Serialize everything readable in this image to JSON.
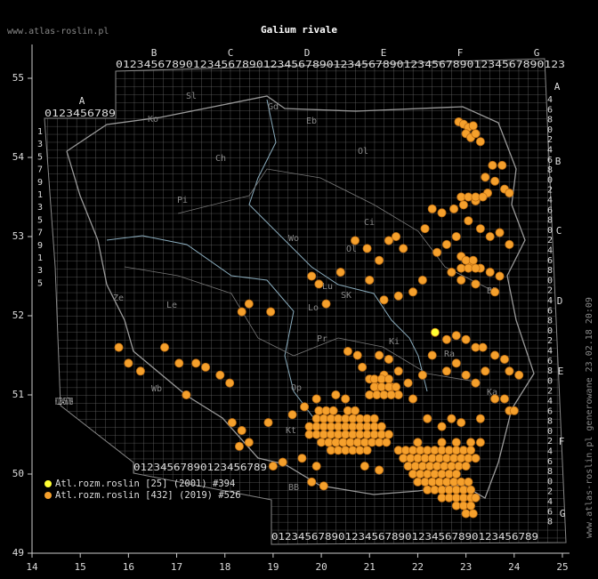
{
  "header": {
    "site": "www.atlas-roslin.pl",
    "title": "Galium rivale"
  },
  "side_note": "www.atlas-roslin.pl generowane 23.02.18 20:09",
  "axes": {
    "lon_ticks": [
      14,
      15,
      16,
      17,
      18,
      19,
      20,
      21,
      22,
      23,
      24,
      25
    ],
    "lat_ticks": [
      49,
      50,
      51,
      52,
      53,
      54,
      55
    ]
  },
  "grid_letters": {
    "top": [
      "B",
      "C",
      "D",
      "E",
      "F",
      "G"
    ],
    "left": "A",
    "right": [
      "A",
      "B",
      "C",
      "D",
      "E",
      "F",
      "G"
    ]
  },
  "digit_rows": {
    "top": "0123456789012345678901234567890123456789012345678901234567890123",
    "upper_left": "0123456789",
    "lower_left": "0123456789",
    "bottom_left": "01234567890123456789",
    "bottom": "0123456789012345678901234567890123456789",
    "left_column": "1357913579135",
    "right_column": "4680246802468024680246802468024680246802468"
  },
  "regions": [
    "Sl",
    "Gd",
    "Eb",
    "Ol",
    "Ko",
    "Ch",
    "Pi",
    "Ci",
    "Wo",
    "Ol",
    "Lo",
    "SK",
    "BP",
    "Pr",
    "Ki",
    "Ze",
    "Le",
    "Lu",
    "Wb",
    "Op",
    "Kt",
    "BB",
    "Ra",
    "Ka"
  ],
  "legend": [
    {
      "label": "Atl.rozm.roslin [25] (2001) #394",
      "color": "#ffff33",
      "points": [
        [
          22.36,
          51.79
        ]
      ]
    },
    {
      "label": "Atl.rozm.roslin [432] (2019) #526",
      "color": "#f5a02c",
      "points": [
        [
          22.85,
          54.45
        ],
        [
          22.95,
          54.42
        ],
        [
          23.05,
          54.38
        ],
        [
          23.15,
          54.4
        ],
        [
          23.0,
          54.3
        ],
        [
          23.1,
          54.25
        ],
        [
          23.3,
          54.2
        ],
        [
          23.2,
          54.3
        ],
        [
          23.55,
          53.9
        ],
        [
          23.75,
          53.9
        ],
        [
          23.4,
          53.75
        ],
        [
          23.6,
          53.7
        ],
        [
          23.8,
          53.6
        ],
        [
          23.9,
          53.55
        ],
        [
          23.45,
          53.55
        ],
        [
          23.2,
          53.45
        ],
        [
          22.95,
          53.4
        ],
        [
          22.75,
          53.35
        ],
        [
          22.5,
          53.3
        ],
        [
          22.3,
          53.35
        ],
        [
          22.15,
          53.1
        ],
        [
          23.05,
          53.2
        ],
        [
          23.3,
          53.1
        ],
        [
          23.5,
          53.0
        ],
        [
          23.7,
          53.05
        ],
        [
          23.9,
          52.9
        ],
        [
          22.8,
          53.0
        ],
        [
          22.6,
          52.9
        ],
        [
          22.4,
          52.8
        ],
        [
          22.9,
          52.75
        ],
        [
          23.1,
          52.65
        ],
        [
          23.3,
          52.6
        ],
        [
          23.5,
          52.55
        ],
        [
          23.7,
          52.5
        ],
        [
          22.7,
          52.55
        ],
        [
          22.9,
          52.45
        ],
        [
          23.2,
          52.4
        ],
        [
          23.6,
          52.3
        ],
        [
          22.9,
          53.5
        ],
        [
          23.05,
          53.5
        ],
        [
          23.2,
          53.5
        ],
        [
          23.35,
          53.5
        ],
        [
          22.9,
          52.6
        ],
        [
          23.05,
          52.6
        ],
        [
          23.2,
          52.6
        ],
        [
          23.0,
          52.7
        ],
        [
          23.15,
          52.7
        ],
        [
          21.4,
          52.95
        ],
        [
          21.7,
          52.85
        ],
        [
          21.55,
          53.0
        ],
        [
          20.7,
          52.95
        ],
        [
          20.95,
          52.85
        ],
        [
          21.2,
          52.7
        ],
        [
          21.0,
          52.45
        ],
        [
          21.3,
          52.2
        ],
        [
          21.6,
          52.25
        ],
        [
          21.9,
          52.3
        ],
        [
          22.1,
          52.45
        ],
        [
          19.8,
          52.5
        ],
        [
          19.95,
          52.4
        ],
        [
          18.5,
          52.15
        ],
        [
          18.35,
          52.05
        ],
        [
          18.95,
          52.05
        ],
        [
          20.1,
          52.15
        ],
        [
          20.4,
          52.55
        ],
        [
          16.75,
          51.6
        ],
        [
          17.05,
          51.4
        ],
        [
          17.4,
          51.4
        ],
        [
          17.6,
          51.35
        ],
        [
          17.9,
          51.25
        ],
        [
          18.1,
          51.15
        ],
        [
          17.2,
          51.0
        ],
        [
          15.8,
          51.6
        ],
        [
          16.0,
          51.4
        ],
        [
          16.25,
          51.3
        ],
        [
          18.15,
          50.65
        ],
        [
          18.35,
          50.55
        ],
        [
          18.3,
          50.35
        ],
        [
          18.5,
          50.4
        ],
        [
          19.0,
          50.1
        ],
        [
          19.2,
          50.15
        ],
        [
          18.9,
          50.65
        ],
        [
          19.4,
          50.75
        ],
        [
          19.65,
          50.85
        ],
        [
          19.9,
          50.95
        ],
        [
          20.3,
          51.0
        ],
        [
          20.5,
          50.95
        ],
        [
          20.55,
          51.55
        ],
        [
          20.75,
          51.5
        ],
        [
          20.85,
          51.35
        ],
        [
          21.0,
          51.2
        ],
        [
          21.15,
          51.1
        ],
        [
          21.3,
          51.25
        ],
        [
          21.45,
          51.1
        ],
        [
          21.6,
          51.3
        ],
        [
          21.4,
          51.45
        ],
        [
          21.2,
          51.5
        ],
        [
          21.6,
          51.0
        ],
        [
          21.8,
          51.15
        ],
        [
          21.9,
          50.95
        ],
        [
          22.1,
          51.25
        ],
        [
          22.3,
          51.5
        ],
        [
          22.6,
          51.7
        ],
        [
          22.8,
          51.75
        ],
        [
          23.0,
          51.7
        ],
        [
          23.2,
          51.6
        ],
        [
          23.35,
          51.6
        ],
        [
          23.6,
          51.5
        ],
        [
          23.8,
          51.45
        ],
        [
          23.9,
          51.3
        ],
        [
          24.1,
          51.25
        ],
        [
          23.4,
          51.3
        ],
        [
          23.2,
          51.15
        ],
        [
          23.0,
          51.25
        ],
        [
          22.8,
          51.4
        ],
        [
          22.6,
          51.3
        ],
        [
          23.6,
          50.95
        ],
        [
          23.8,
          50.95
        ],
        [
          23.9,
          50.8
        ],
        [
          24.0,
          50.8
        ],
        [
          23.3,
          50.7
        ],
        [
          22.9,
          50.65
        ],
        [
          22.7,
          50.7
        ],
        [
          22.5,
          50.6
        ],
        [
          22.2,
          50.7
        ],
        [
          20.9,
          50.1
        ],
        [
          21.2,
          50.05
        ],
        [
          19.8,
          49.9
        ],
        [
          20.05,
          49.85
        ],
        [
          19.6,
          50.2
        ],
        [
          19.9,
          50.1
        ],
        [
          21.1,
          51.2
        ],
        [
          21.25,
          51.2
        ],
        [
          21.4,
          51.2
        ],
        [
          21.1,
          51.1
        ],
        [
          21.25,
          51.1
        ],
        [
          21.4,
          51.1
        ],
        [
          21.55,
          51.1
        ],
        [
          21.0,
          51.0
        ],
        [
          21.15,
          51.0
        ],
        [
          21.3,
          51.0
        ],
        [
          21.45,
          51.0
        ],
        [
          19.95,
          50.8
        ],
        [
          20.1,
          50.8
        ],
        [
          20.25,
          50.8
        ],
        [
          20.55,
          50.8
        ],
        [
          20.7,
          50.8
        ],
        [
          19.9,
          50.7
        ],
        [
          20.05,
          50.7
        ],
        [
          20.2,
          50.7
        ],
        [
          20.35,
          50.7
        ],
        [
          20.5,
          50.7
        ],
        [
          20.65,
          50.7
        ],
        [
          20.8,
          50.7
        ],
        [
          20.95,
          50.7
        ],
        [
          21.1,
          50.7
        ],
        [
          19.75,
          50.6
        ],
        [
          19.9,
          50.6
        ],
        [
          20.05,
          50.6
        ],
        [
          20.2,
          50.6
        ],
        [
          20.35,
          50.6
        ],
        [
          20.5,
          50.6
        ],
        [
          20.65,
          50.6
        ],
        [
          20.8,
          50.6
        ],
        [
          20.95,
          50.6
        ],
        [
          21.1,
          50.6
        ],
        [
          21.25,
          50.6
        ],
        [
          19.75,
          50.5
        ],
        [
          19.9,
          50.5
        ],
        [
          20.05,
          50.5
        ],
        [
          20.2,
          50.5
        ],
        [
          20.35,
          50.5
        ],
        [
          20.5,
          50.5
        ],
        [
          20.65,
          50.5
        ],
        [
          20.8,
          50.5
        ],
        [
          20.95,
          50.5
        ],
        [
          21.1,
          50.5
        ],
        [
          21.25,
          50.5
        ],
        [
          21.4,
          50.5
        ],
        [
          20.0,
          50.4
        ],
        [
          20.15,
          50.4
        ],
        [
          20.3,
          50.4
        ],
        [
          20.45,
          50.4
        ],
        [
          20.6,
          50.4
        ],
        [
          20.75,
          50.4
        ],
        [
          20.9,
          50.4
        ],
        [
          21.05,
          50.4
        ],
        [
          21.2,
          50.4
        ],
        [
          21.35,
          50.4
        ],
        [
          20.2,
          50.3
        ],
        [
          20.35,
          50.3
        ],
        [
          20.5,
          50.3
        ],
        [
          20.65,
          50.3
        ],
        [
          20.8,
          50.3
        ],
        [
          20.95,
          50.3
        ],
        [
          22.0,
          50.4
        ],
        [
          22.5,
          50.4
        ],
        [
          22.8,
          50.4
        ],
        [
          23.1,
          50.4
        ],
        [
          23.3,
          50.4
        ],
        [
          21.6,
          50.3
        ],
        [
          21.75,
          50.3
        ],
        [
          21.9,
          50.3
        ],
        [
          22.05,
          50.3
        ],
        [
          22.2,
          50.3
        ],
        [
          22.35,
          50.3
        ],
        [
          22.5,
          50.3
        ],
        [
          22.65,
          50.3
        ],
        [
          22.8,
          50.3
        ],
        [
          22.95,
          50.3
        ],
        [
          23.1,
          50.3
        ],
        [
          21.7,
          50.2
        ],
        [
          21.85,
          50.2
        ],
        [
          22.0,
          50.2
        ],
        [
          22.15,
          50.2
        ],
        [
          22.3,
          50.2
        ],
        [
          22.45,
          50.2
        ],
        [
          22.6,
          50.2
        ],
        [
          22.75,
          50.2
        ],
        [
          22.9,
          50.2
        ],
        [
          23.05,
          50.2
        ],
        [
          23.2,
          50.2
        ],
        [
          21.8,
          50.1
        ],
        [
          21.95,
          50.1
        ],
        [
          22.1,
          50.1
        ],
        [
          22.25,
          50.1
        ],
        [
          22.4,
          50.1
        ],
        [
          22.55,
          50.1
        ],
        [
          22.7,
          50.1
        ],
        [
          22.85,
          50.1
        ],
        [
          23.0,
          50.1
        ],
        [
          21.9,
          50.0
        ],
        [
          22.05,
          50.0
        ],
        [
          22.2,
          50.0
        ],
        [
          22.35,
          50.0
        ],
        [
          22.5,
          50.0
        ],
        [
          22.65,
          50.0
        ],
        [
          22.8,
          50.0
        ],
        [
          22.0,
          49.9
        ],
        [
          22.15,
          49.9
        ],
        [
          22.3,
          49.9
        ],
        [
          22.45,
          49.9
        ],
        [
          22.6,
          49.9
        ],
        [
          22.75,
          49.9
        ],
        [
          22.9,
          49.9
        ],
        [
          23.05,
          49.9
        ],
        [
          22.2,
          49.8
        ],
        [
          22.35,
          49.8
        ],
        [
          22.5,
          49.8
        ],
        [
          22.65,
          49.8
        ],
        [
          22.8,
          49.8
        ],
        [
          22.95,
          49.8
        ],
        [
          23.1,
          49.8
        ],
        [
          22.5,
          49.7
        ],
        [
          22.65,
          49.7
        ],
        [
          22.8,
          49.7
        ],
        [
          22.95,
          49.7
        ],
        [
          23.1,
          49.7
        ],
        [
          23.2,
          49.7
        ],
        [
          22.8,
          49.6
        ],
        [
          22.95,
          49.6
        ],
        [
          23.1,
          49.6
        ],
        [
          23.0,
          49.5
        ],
        [
          23.15,
          49.5
        ]
      ]
    }
  ]
}
